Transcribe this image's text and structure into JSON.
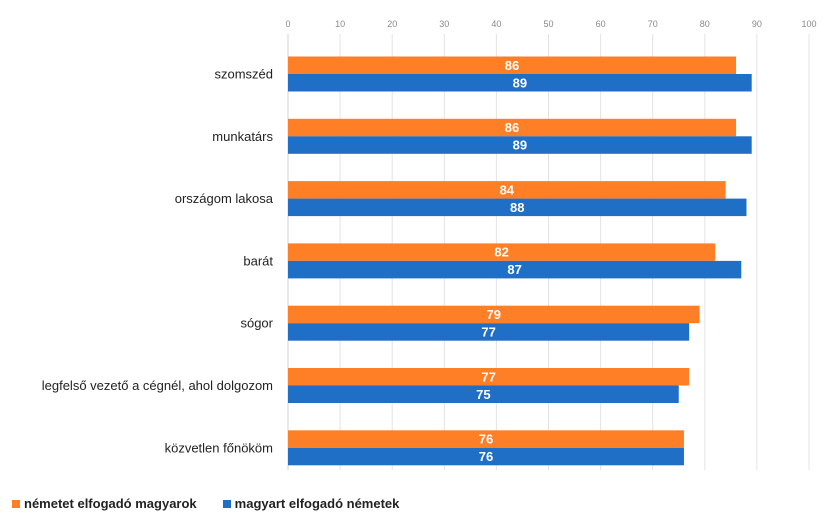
{
  "chart_data": {
    "type": "bar",
    "orientation": "horizontal",
    "categories": [
      "szomszéd",
      "munkatárs",
      "országom lakosa",
      "barát",
      "sógor",
      "legfelső vezető a cégnél, ahol dolgozom",
      "közvetlen főnököm"
    ],
    "series": [
      {
        "name": "németet elfogadó magyarok",
        "color": "#ff7f27",
        "values": [
          86,
          86,
          84,
          82,
          79,
          77,
          76
        ]
      },
      {
        "name": "magyart elfogadó németek",
        "color": "#1f6fc6",
        "values": [
          89,
          89,
          88,
          87,
          77,
          75,
          76
        ]
      }
    ],
    "xlim": [
      0,
      100
    ],
    "xticks": [
      "0",
      "10",
      "20",
      "30",
      "40",
      "50",
      "60",
      "70",
      "80",
      "90",
      "100"
    ],
    "xaxis_position": "top",
    "grid": "vertical",
    "data_labels": true,
    "legend_position": "bottom-left"
  }
}
